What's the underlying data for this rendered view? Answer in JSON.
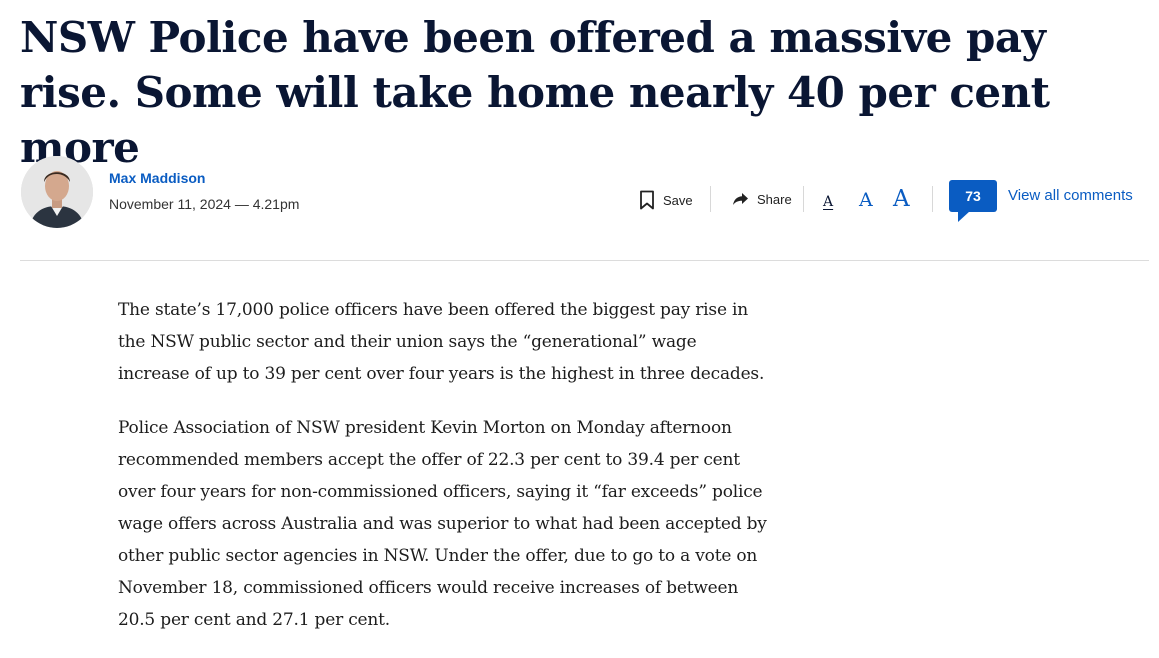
{
  "article": {
    "headline": "NSW Police have been offered a massive pay rise. Some will take home nearly 40 per cent more",
    "author": "Max Maddison",
    "published": "November 11, 2024 — 4.21pm",
    "paragraphs": [
      "The state’s 17,000 police officers have been offered the biggest pay rise in the NSW public sector and their union says the “generational” wage increase of up to 39 per cent over four years is the highest in three decades.",
      "Police Association of NSW president Kevin Morton on Monday afternoon recommended members accept the offer of 22.3 per cent to 39.4 per cent over four years for non-commissioned officers, saying it “far exceeds” police wage offers across Australia and was superior to what had been accepted by other public sector agencies in NSW. Under the offer, due to go to a vote on November 18, commissioned officers would receive increases of between 20.5 per cent and 27.1 per cent."
    ]
  },
  "toolbar": {
    "save_label": "Save",
    "save_icon": "bookmark-icon",
    "share_label": "Share",
    "share_icon": "share-arrow-icon",
    "font_small": "A",
    "font_medium": "A",
    "font_large": "A",
    "comment_count": "73",
    "view_comments_label": "View all comments"
  },
  "colors": {
    "headline": "#0a1633",
    "link": "#0a5cc2",
    "divider": "#dcdcdc"
  }
}
